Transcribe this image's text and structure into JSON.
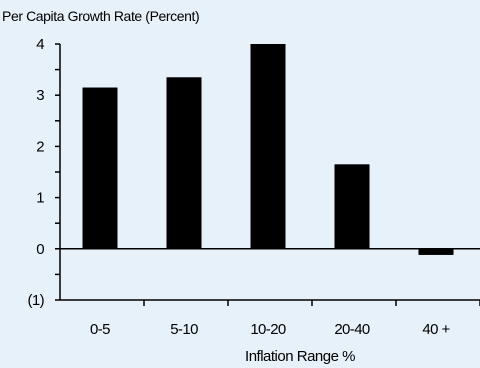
{
  "chart_data": {
    "type": "bar",
    "title": "",
    "ylabel": "Per Capita Growth Rate (Percent)",
    "xlabel": "Inflation Range %",
    "categories": [
      "0-5",
      "5-10",
      "10-20",
      "20-40",
      "40 +"
    ],
    "values": [
      3.15,
      3.35,
      4.0,
      1.65,
      -0.12
    ],
    "ylim": [
      -1,
      4
    ],
    "yticks": [
      {
        "value": 4,
        "label": "4"
      },
      {
        "value": 3,
        "label": "3"
      },
      {
        "value": 2,
        "label": "2"
      },
      {
        "value": 1,
        "label": "1"
      },
      {
        "value": 0,
        "label": "0"
      },
      {
        "value": -1,
        "label": "(1)"
      }
    ],
    "minor_ytick_step": 0.5,
    "grid": false,
    "legend": "none",
    "colors": {
      "bar": "#000000",
      "background": "#e7f1f9"
    }
  }
}
